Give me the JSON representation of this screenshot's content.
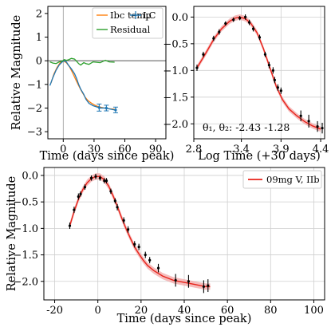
{
  "colors": {
    "lc": "#1f77b4",
    "ibc_temp": "#ff7f0e",
    "residual": "#2ca02c",
    "model": "#e8231a",
    "model_band": "#f2a6a6",
    "zero_line": "#555555",
    "vline": "#999999",
    "errorbar": "#000000"
  },
  "chart_data": [
    {
      "id": "panel-a",
      "type": "line",
      "xlabel": "Time (days since peak)",
      "ylabel": "Relative Magnitude",
      "xlim": [
        -15,
        100
      ],
      "ylim": [
        -3.3,
        2.3
      ],
      "y_inverted": false,
      "xticks": [
        0,
        30,
        60,
        90
      ],
      "yticks": [
        -3,
        -2,
        -1,
        0,
        1,
        2
      ],
      "grid": false,
      "legend": {
        "placement": "top-right",
        "entries": [
          "Ibc temp",
          "LC",
          "Residual"
        ]
      },
      "vline_x": 0,
      "hline_y": 0,
      "series": [
        {
          "name": "Ibc temp",
          "x": [
            -12,
            -9,
            -6,
            -3,
            0,
            3,
            6,
            9,
            12,
            15,
            18,
            21,
            24,
            27,
            30,
            33,
            36,
            40,
            45,
            50
          ],
          "y": [
            -0.95,
            -0.55,
            -0.28,
            -0.08,
            0.0,
            -0.08,
            -0.25,
            -0.5,
            -0.78,
            -1.05,
            -1.3,
            -1.52,
            -1.68,
            -1.78,
            -1.86,
            -1.92,
            -1.96,
            -2.0,
            -2.03,
            -2.05
          ]
        },
        {
          "name": "LC",
          "x": [
            -13,
            -10,
            -7,
            -4,
            -1,
            1,
            3,
            5,
            8,
            11,
            13,
            15,
            17,
            20,
            22,
            25,
            29,
            36,
            41,
            50
          ],
          "y": [
            -1.05,
            -0.7,
            -0.4,
            -0.18,
            -0.05,
            0.0,
            -0.05,
            -0.18,
            -0.35,
            -0.55,
            -0.75,
            -1.0,
            -1.2,
            -1.42,
            -1.62,
            -1.8,
            -1.9,
            -2.0,
            -2.0,
            -2.08
          ]
        },
        {
          "name": "Residual",
          "x": [
            -13,
            -10,
            -7,
            -4,
            -1,
            1,
            3,
            5,
            8,
            11,
            13,
            15,
            17,
            20,
            22,
            25,
            29,
            36,
            41,
            45,
            50
          ],
          "y": [
            -0.05,
            -0.1,
            -0.12,
            -0.05,
            -0.02,
            0.05,
            0.02,
            0.04,
            0.1,
            0.07,
            -0.02,
            -0.12,
            -0.18,
            -0.08,
            -0.12,
            -0.15,
            -0.05,
            -0.08,
            0.02,
            -0.05,
            -0.06
          ]
        }
      ],
      "errorbar_points": {
        "x": [
          35,
          42,
          51
        ],
        "y": [
          -1.98,
          -2.0,
          -2.08
        ],
        "err": [
          0.15,
          0.12,
          0.12
        ]
      }
    },
    {
      "id": "panel-b",
      "type": "line",
      "xlabel": "Log Time (+30 days)",
      "ylabel": "",
      "xlim": [
        2.8,
        4.45
      ],
      "ylim": [
        -2.28,
        0.2
      ],
      "xticks": [
        2.8,
        3.4,
        3.9,
        4.4
      ],
      "xtick_labels": [
        "2.8",
        "3.4",
        "3.9",
        "4.4"
      ],
      "yticks": [
        -2.0,
        -1.5,
        -1.0,
        -0.5,
        0.0
      ],
      "ytick_labels": [
        "−2.0",
        "−1.5",
        "−1.0",
        "−0.5",
        "0.0"
      ],
      "grid": true,
      "annotation": {
        "text": "θ₁, θ₂: -2.43 -1.28"
      },
      "model": {
        "x": [
          2.84,
          2.95,
          3.05,
          3.15,
          3.25,
          3.32,
          3.38,
          3.45,
          3.52,
          3.6,
          3.68,
          3.76,
          3.84,
          3.92,
          4.0,
          4.1,
          4.2,
          4.3,
          4.4
        ],
        "y": [
          -0.95,
          -0.68,
          -0.42,
          -0.22,
          -0.08,
          -0.02,
          0.0,
          -0.03,
          -0.12,
          -0.3,
          -0.6,
          -0.95,
          -1.3,
          -1.55,
          -1.72,
          -1.85,
          -1.96,
          -2.04,
          -2.1
        ],
        "band": 0.05
      },
      "points": {
        "x": [
          2.84,
          2.92,
          3.05,
          3.12,
          3.2,
          3.3,
          3.38,
          3.45,
          3.5,
          3.55,
          3.63,
          3.7,
          3.75,
          3.8,
          3.82,
          3.86,
          3.9,
          4.15,
          4.25,
          4.36,
          4.42
        ],
        "y": [
          -0.95,
          -0.7,
          -0.4,
          -0.28,
          -0.12,
          -0.05,
          -0.02,
          0.0,
          -0.1,
          -0.22,
          -0.38,
          -0.7,
          -0.9,
          -1.0,
          -1.18,
          -1.32,
          -1.38,
          -1.85,
          -1.95,
          -2.05,
          -2.08
        ],
        "err": [
          0.06,
          0.05,
          0.05,
          0.05,
          0.04,
          0.04,
          0.04,
          0.05,
          0.05,
          0.05,
          0.05,
          0.05,
          0.06,
          0.06,
          0.06,
          0.06,
          0.06,
          0.1,
          0.12,
          0.1,
          0.1
        ]
      }
    },
    {
      "id": "panel-c",
      "type": "line",
      "xlabel": "Time (days since peak)",
      "ylabel": "Relative Magnitude",
      "xlim": [
        -25,
        105
      ],
      "ylim": [
        -2.35,
        0.15
      ],
      "xticks": [
        -20,
        0,
        20,
        40,
        60,
        80,
        100
      ],
      "yticks": [
        -2.0,
        -1.5,
        -1.0,
        -0.5,
        0.0
      ],
      "ytick_labels": [
        "−2.0",
        "−1.5",
        "−1.0",
        "−0.5",
        "0.0"
      ],
      "grid": true,
      "legend": {
        "placement": "top-right",
        "entries": [
          "09mg V, IIb"
        ]
      },
      "series": [
        {
          "name": "09mg V, IIb",
          "x": [
            -13,
            -11,
            -9,
            -7,
            -5,
            -3,
            -1,
            1,
            3,
            5,
            7,
            9,
            11,
            13,
            15,
            17,
            19,
            21,
            23,
            26,
            30,
            35,
            40,
            45,
            50,
            52
          ],
          "y": [
            -0.95,
            -0.68,
            -0.45,
            -0.27,
            -0.14,
            -0.06,
            -0.02,
            -0.02,
            -0.08,
            -0.2,
            -0.38,
            -0.58,
            -0.8,
            -1.0,
            -1.18,
            -1.35,
            -1.48,
            -1.6,
            -1.7,
            -1.8,
            -1.9,
            -1.98,
            -2.02,
            -2.06,
            -2.1,
            -2.1
          ],
          "band": 0.06
        }
      ],
      "points": {
        "x": [
          -13,
          -11,
          -9,
          -8,
          -6,
          -3,
          -1,
          1,
          3,
          4,
          6,
          8,
          9,
          12,
          14,
          17,
          19,
          22,
          24,
          28,
          36,
          42,
          49,
          51
        ],
        "y": [
          -0.95,
          -0.65,
          -0.4,
          -0.35,
          -0.22,
          -0.05,
          -0.02,
          -0.05,
          -0.1,
          -0.1,
          -0.3,
          -0.48,
          -0.6,
          -0.85,
          -1.02,
          -1.3,
          -1.35,
          -1.5,
          -1.6,
          -1.75,
          -1.98,
          -2.0,
          -2.1,
          -2.08
        ],
        "err": [
          0.06,
          0.06,
          0.06,
          0.05,
          0.05,
          0.05,
          0.05,
          0.05,
          0.05,
          0.05,
          0.05,
          0.05,
          0.06,
          0.06,
          0.06,
          0.06,
          0.06,
          0.06,
          0.06,
          0.08,
          0.12,
          0.12,
          0.12,
          0.12
        ]
      }
    }
  ]
}
